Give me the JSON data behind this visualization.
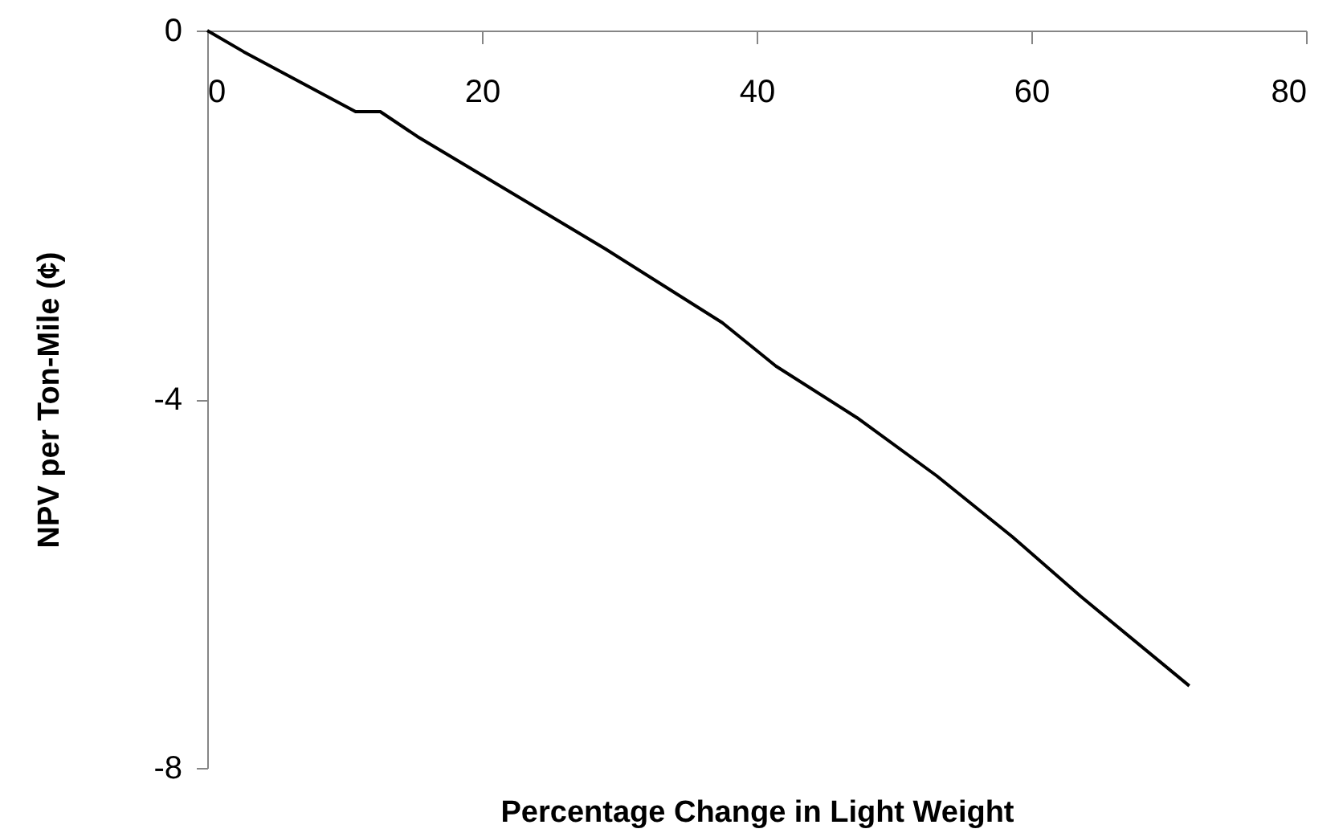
{
  "chart_data": {
    "type": "line",
    "xlabel": "Percentage Change in Light Weight",
    "ylabel": "NPV per Ton-Mile (¢)",
    "series": [
      {
        "color": "#000000",
        "x": [
          0,
          2.65,
          10.8,
          12.6,
          15.3,
          29.0,
          37.5,
          41.4,
          47.3,
          53.1,
          58.6,
          63.6,
          71.5
        ],
        "values": [
          0,
          -0.23,
          -0.88,
          -0.88,
          -1.15,
          -2.37,
          -3.17,
          -3.64,
          -4.2,
          -4.83,
          -5.49,
          -6.14,
          -7.11
        ]
      }
    ],
    "xlim": [
      0,
      80
    ],
    "xticks": [
      0,
      20,
      40,
      60,
      80
    ],
    "ylim": [
      -8,
      0
    ],
    "yticks": [
      -8,
      -4,
      0
    ],
    "grid": false
  }
}
